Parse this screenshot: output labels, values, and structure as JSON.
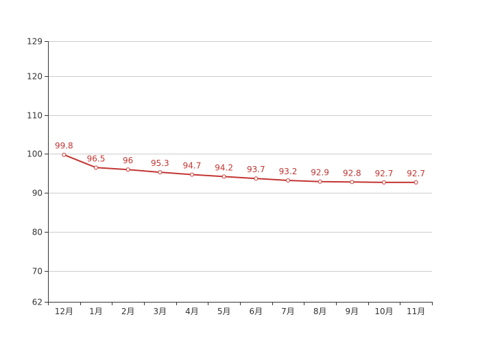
{
  "chart_data": {
    "type": "line",
    "categories": [
      "12月",
      "1月",
      "2月",
      "3月",
      "4月",
      "5月",
      "6月",
      "7月",
      "8月",
      "9月",
      "10月",
      "11月"
    ],
    "series": [
      {
        "values": [
          99.8,
          96.5,
          96,
          95.3,
          94.7,
          94.2,
          93.7,
          93.2,
          92.9,
          92.8,
          92.7,
          92.7
        ]
      }
    ],
    "y_ticks": [
      62,
      70,
      80,
      90,
      100,
      110,
      120,
      129
    ],
    "ylim": [
      62,
      129
    ],
    "grid": true,
    "line_color": "#c23531",
    "grid_color": "#cccccc",
    "axis_color": "#333333",
    "title": "",
    "xlabel": "",
    "ylabel": ""
  }
}
